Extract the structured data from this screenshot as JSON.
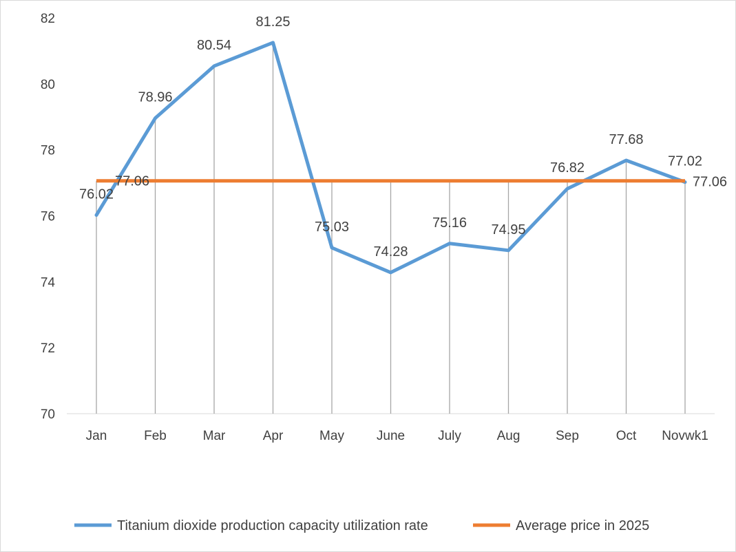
{
  "chart_data": {
    "type": "line",
    "title": "",
    "xlabel": "",
    "ylabel": "",
    "categories": [
      "Jan",
      "Feb",
      "Mar",
      "Apr",
      "May",
      "June",
      "July",
      "Aug",
      "Sep",
      "Oct",
      "Novwk1"
    ],
    "ylim": [
      70,
      82
    ],
    "yticks": [
      "70",
      "72",
      "74",
      "76",
      "78",
      "80",
      "82"
    ],
    "grid": false,
    "drop_lines": true,
    "legend_position": "bottom",
    "series": [
      {
        "name": "Titanium dioxide production capacity utilization rate",
        "color": "#5b9bd5",
        "values": [
          76.02,
          78.96,
          80.54,
          81.25,
          75.03,
          74.28,
          75.16,
          74.95,
          76.82,
          77.68,
          77.02
        ],
        "labels": [
          "76.02",
          "78.96",
          "80.54",
          "81.25",
          "75.03",
          "74.28",
          "75.16",
          "74.95",
          "76.82",
          "77.68",
          "77.02"
        ]
      },
      {
        "name": "Average price in 2025",
        "color": "#ed7d31",
        "values": [
          77.06,
          77.06,
          77.06,
          77.06,
          77.06,
          77.06,
          77.06,
          77.06,
          77.06,
          77.06,
          77.06
        ],
        "labels": [
          "77.06",
          "77.06"
        ]
      }
    ]
  }
}
